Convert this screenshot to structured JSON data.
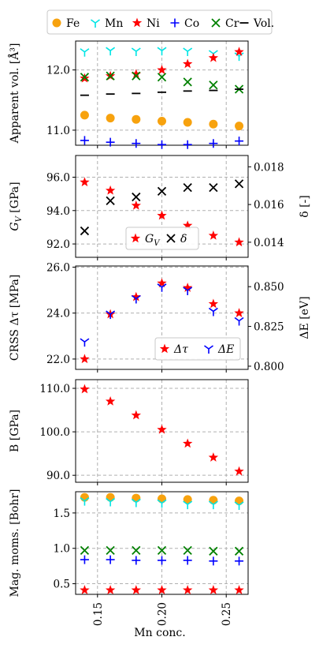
{
  "figure": {
    "xlabel": "Mn conc.",
    "x_ticks": [
      0.15,
      0.2,
      0.25
    ],
    "x_tick_labels": [
      "0.15",
      "0.20",
      "0.25"
    ],
    "xlim": [
      0.133,
      0.267
    ],
    "grid": true,
    "legend_placement": "top"
  },
  "legend": {
    "entries": [
      {
        "label": "Fe",
        "marker": "circle-icon",
        "color": "#f7a20e"
      },
      {
        "label": "Mn",
        "marker": "tri-down-icon",
        "color": "#00e5e5"
      },
      {
        "label": "Ni",
        "marker": "star-icon",
        "color": "#ff0000"
      },
      {
        "label": "Co",
        "marker": "plus-icon",
        "color": "#0000ff"
      },
      {
        "label": "Cr",
        "marker": "x-icon",
        "color": "#008000"
      },
      {
        "label": "Vol.",
        "marker": "hline-icon",
        "color": "#000000"
      }
    ]
  },
  "chart_data": [
    {
      "type": "scatter",
      "ylabel": "Apparent vol. [Å³]",
      "ylim": [
        10.75,
        12.48
      ],
      "y_ticks": [
        11.0,
        12.0
      ],
      "y_tick_labels": [
        "11.0",
        "12.0"
      ],
      "x": [
        0.14,
        0.16,
        0.18,
        0.2,
        0.22,
        0.24,
        0.26
      ],
      "series": [
        {
          "name": "Fe",
          "marker": "circle",
          "color": "#f7a20e",
          "values": [
            11.25,
            11.2,
            11.18,
            11.15,
            11.13,
            11.1,
            11.07
          ]
        },
        {
          "name": "Mn",
          "marker": "tri_down",
          "color": "#00e5e5",
          "values": [
            12.3,
            12.32,
            12.31,
            12.32,
            12.31,
            12.27,
            12.23
          ]
        },
        {
          "name": "Ni",
          "marker": "star",
          "color": "#ff0000",
          "values": [
            11.86,
            11.9,
            11.93,
            12.0,
            12.1,
            12.2,
            12.3
          ]
        },
        {
          "name": "Co",
          "marker": "plus",
          "color": "#0000ff",
          "values": [
            10.83,
            10.8,
            10.78,
            10.76,
            10.76,
            10.78,
            10.82
          ]
        },
        {
          "name": "Cr",
          "marker": "x",
          "color": "#008000",
          "values": [
            11.88,
            11.9,
            11.9,
            11.88,
            11.8,
            11.75,
            11.68
          ]
        },
        {
          "name": "Vol.",
          "marker": "hline",
          "color": "#000000",
          "values": [
            11.58,
            11.6,
            11.61,
            11.63,
            11.65,
            11.66,
            11.68
          ]
        }
      ]
    },
    {
      "type": "scatter",
      "ylabel": "G_V [GPa]",
      "ylim": [
        91.2,
        97.3
      ],
      "y_ticks": [
        92.0,
        94.0,
        96.0
      ],
      "y_tick_labels": [
        "92.0",
        "94.0",
        "96.0"
      ],
      "y2label": "δ [-]",
      "y2lim": [
        0.0132,
        0.0186
      ],
      "y2_ticks": [
        0.014,
        0.016,
        0.018
      ],
      "y2_tick_labels": [
        "0.014",
        "0.016",
        "0.018"
      ],
      "x": [
        0.14,
        0.16,
        0.18,
        0.2,
        0.22,
        0.24,
        0.26
      ],
      "legend": {
        "placement": "lower-center"
      },
      "series": [
        {
          "name": "G_V",
          "label_main": "G",
          "label_sub": "V",
          "marker": "star",
          "color": "#ff0000",
          "axis": "left",
          "values": [
            95.7,
            95.2,
            94.3,
            93.7,
            93.1,
            92.5,
            92.1
          ]
        },
        {
          "name": "δ",
          "label_main": "δ",
          "label_sub": "",
          "marker": "x",
          "color": "#000000",
          "axis": "right",
          "values": [
            0.0146,
            0.0162,
            0.0164,
            0.0167,
            0.0169,
            0.0169,
            0.0171
          ]
        }
      ]
    },
    {
      "type": "scatter",
      "ylabel": "CRSS Δτ [MPa]",
      "ylim": [
        21.55,
        26.05
      ],
      "y_ticks": [
        22.0,
        24.0,
        26.0
      ],
      "y_tick_labels": [
        "22.0",
        "24.0",
        "26.0"
      ],
      "y2label": "ΔE [eV]",
      "y2lim": [
        0.798,
        0.863
      ],
      "y2_ticks": [
        0.8,
        0.825,
        0.85
      ],
      "y2_tick_labels": [
        "0.800",
        "0.825",
        "0.850"
      ],
      "x": [
        0.14,
        0.16,
        0.18,
        0.2,
        0.22,
        0.24,
        0.26
      ],
      "legend": {
        "placement": "lower-right"
      },
      "series": [
        {
          "name": "Δτ",
          "label_main": "Δτ",
          "label_sub": "",
          "marker": "star",
          "color": "#ff0000",
          "axis": "left",
          "values": [
            22.0,
            23.95,
            24.7,
            25.3,
            25.1,
            24.4,
            24.0
          ]
        },
        {
          "name": "ΔE",
          "label_main": "ΔE",
          "label_sub": "",
          "marker": "tri_down",
          "color": "#0000ff",
          "axis": "right",
          "values": [
            0.8153,
            0.8327,
            0.8424,
            0.8497,
            0.8476,
            0.8345,
            0.8285
          ]
        }
      ]
    },
    {
      "type": "scatter",
      "ylabel": "B [GPa]",
      "ylim": [
        88.4,
        112.0
      ],
      "y_ticks": [
        90.0,
        100.0,
        110.0
      ],
      "y_tick_labels": [
        "90.0",
        "100.0",
        "110.0"
      ],
      "x": [
        0.14,
        0.16,
        0.18,
        0.2,
        0.22,
        0.24,
        0.26
      ],
      "series": [
        {
          "name": "B",
          "marker": "star",
          "color": "#ff0000",
          "values": [
            109.8,
            107.0,
            103.8,
            100.5,
            97.3,
            94.1,
            90.9
          ]
        }
      ]
    },
    {
      "type": "scatter",
      "ylabel": "Mag. moms. [Bohr]",
      "ylim": [
        0.35,
        1.8
      ],
      "y_ticks": [
        0.5,
        1.0,
        1.5
      ],
      "y_tick_labels": [
        "0.5",
        "1.0",
        "1.5"
      ],
      "x": [
        0.14,
        0.16,
        0.18,
        0.2,
        0.22,
        0.24,
        0.26
      ],
      "series": [
        {
          "name": "Fe",
          "marker": "circle",
          "color": "#f7a20e",
          "values": [
            1.72,
            1.72,
            1.71,
            1.7,
            1.69,
            1.68,
            1.67
          ]
        },
        {
          "name": "Mn",
          "marker": "tri_down",
          "color": "#00e5e5",
          "values": [
            1.67,
            1.66,
            1.65,
            1.64,
            1.62,
            1.62,
            1.61
          ]
        },
        {
          "name": "Ni",
          "marker": "star",
          "color": "#ff0000",
          "values": [
            0.41,
            0.41,
            0.41,
            0.41,
            0.41,
            0.41,
            0.41
          ]
        },
        {
          "name": "Co",
          "marker": "plus",
          "color": "#0000ff",
          "values": [
            0.84,
            0.84,
            0.83,
            0.83,
            0.83,
            0.82,
            0.82
          ]
        },
        {
          "name": "Cr",
          "marker": "x",
          "color": "#008000",
          "values": [
            0.97,
            0.97,
            0.97,
            0.97,
            0.97,
            0.96,
            0.96
          ]
        }
      ]
    }
  ]
}
